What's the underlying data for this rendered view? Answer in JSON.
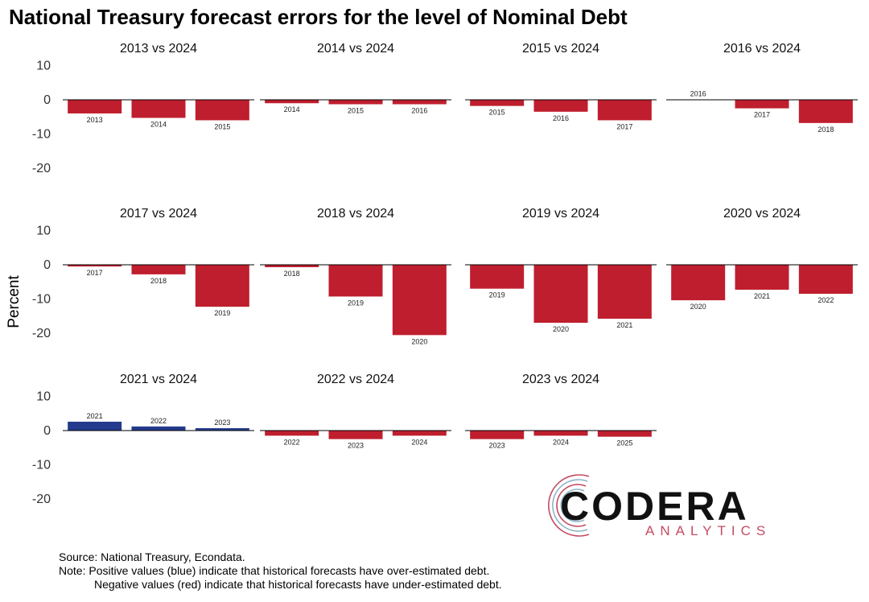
{
  "title": "National Treasury forecast errors for the level of Nominal Debt",
  "notes": {
    "source": "Source: National Treasury, Econdata.",
    "note1": "Note: Positive values (blue) indicate that historical forecasts have over-estimated debt.",
    "note2": "Negative values (red) indicate that historical forecasts have under-estimated debt."
  },
  "logo": {
    "word": "CODERA",
    "sub": "ANALYTICS"
  },
  "colors": {
    "positive": "#243a8c",
    "negative": "#bf1e2e"
  },
  "chart_data": {
    "type": "bar",
    "ylabel": "Percent",
    "ylim": [
      -25,
      12
    ],
    "yticks": [
      10,
      0,
      -10,
      -20
    ],
    "grid": false,
    "panels": [
      {
        "title": "2013 vs 2024",
        "categories": [
          "2013",
          "2014",
          "2015"
        ],
        "values": [
          -4.0,
          -5.3,
          -6.0
        ]
      },
      {
        "title": "2014 vs 2024",
        "categories": [
          "2014",
          "2015",
          "2016"
        ],
        "values": [
          -1.0,
          -1.3,
          -1.3
        ]
      },
      {
        "title": "2015 vs 2024",
        "categories": [
          "2015",
          "2016",
          "2017"
        ],
        "values": [
          -1.8,
          -3.5,
          -6.0
        ]
      },
      {
        "title": "2016 vs 2024",
        "categories": [
          "2016",
          "2017",
          "2018"
        ],
        "values": [
          0.1,
          -2.5,
          -6.8
        ]
      },
      {
        "title": "2017 vs 2024",
        "categories": [
          "2017",
          "2018",
          "2019"
        ],
        "values": [
          -0.5,
          -2.8,
          -12.3
        ]
      },
      {
        "title": "2018 vs 2024",
        "categories": [
          "2018",
          "2019",
          "2020"
        ],
        "values": [
          -0.7,
          -9.3,
          -20.6
        ]
      },
      {
        "title": "2019 vs 2024",
        "categories": [
          "2019",
          "2020",
          "2021"
        ],
        "values": [
          -7.0,
          -17.0,
          -15.8
        ]
      },
      {
        "title": "2020 vs 2024",
        "categories": [
          "2020",
          "2021",
          "2022"
        ],
        "values": [
          -10.4,
          -7.3,
          -8.5
        ]
      },
      {
        "title": "2021 vs 2024",
        "categories": [
          "2021",
          "2022",
          "2023"
        ],
        "values": [
          2.6,
          1.2,
          0.7
        ]
      },
      {
        "title": "2022 vs 2024",
        "categories": [
          "2022",
          "2023",
          "2024"
        ],
        "values": [
          -1.5,
          -2.5,
          -1.5
        ]
      },
      {
        "title": "2023 vs 2024",
        "categories": [
          "2023",
          "2024",
          "2025"
        ],
        "values": [
          -2.5,
          -1.5,
          -1.8
        ]
      }
    ]
  }
}
